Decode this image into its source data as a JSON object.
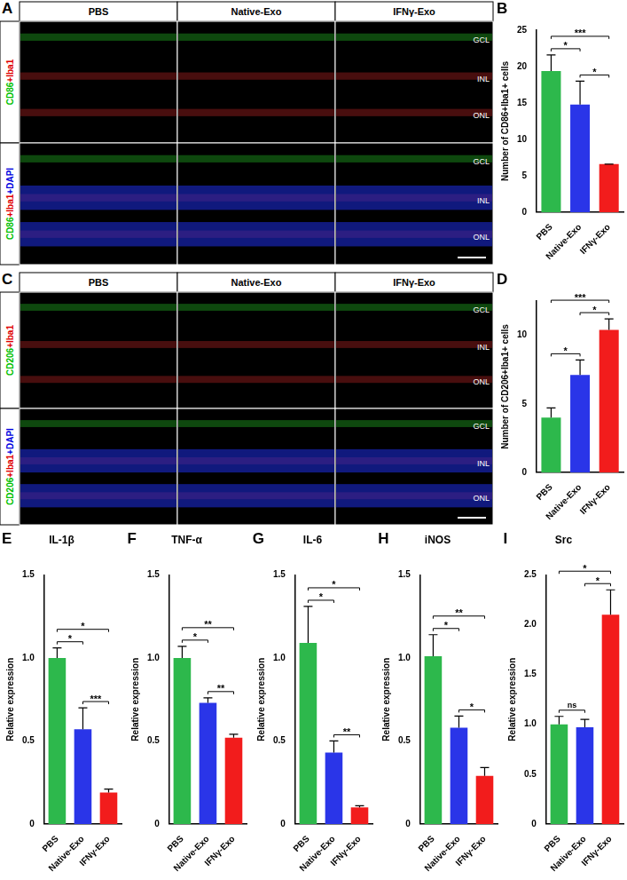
{
  "image_panels": [
    {
      "panel": "A",
      "columns": [
        "PBS",
        "Native-Exo",
        "IFNγ-Exo"
      ],
      "rows": [
        [
          {
            "text": "CD86",
            "color": "#00c000"
          },
          {
            "text": "+Iba1",
            "color": "#e00000"
          }
        ],
        [
          {
            "text": "CD86",
            "color": "#00c000"
          },
          {
            "text": "+Iba1",
            "color": "#e00000"
          },
          {
            "text": "+DAPI",
            "color": "#0000e0"
          }
        ]
      ],
      "layers": [
        "GCL",
        "INL",
        "ONL"
      ]
    },
    {
      "panel": "C",
      "columns": [
        "PBS",
        "Native-Exo",
        "IFNγ-Exo"
      ],
      "rows": [
        [
          {
            "text": "CD206",
            "color": "#00c000"
          },
          {
            "text": "+Iba1",
            "color": "#e00000"
          }
        ],
        [
          {
            "text": "CD206",
            "color": "#00c000"
          },
          {
            "text": "+Iba1",
            "color": "#e00000"
          },
          {
            "text": "+DAPI",
            "color": "#0000e0"
          }
        ]
      ],
      "layers": [
        "GCL",
        "INL",
        "ONL"
      ]
    }
  ],
  "chart_data": [
    {
      "panel": "B",
      "type": "bar",
      "categories": [
        "PBS",
        "Native-Exo",
        "IFNγ-Exo"
      ],
      "values": [
        19.4,
        14.8,
        6.6
      ],
      "errors": [
        2.2,
        3.2,
        0
      ],
      "colors": [
        "#2db84c",
        "#2a35e8",
        "#f21c1c"
      ],
      "y_label": "Number of CD86+Iba1+ cells",
      "ylim": [
        0,
        25
      ],
      "yticks": [
        0,
        5,
        10,
        15,
        20,
        25
      ],
      "grid": false,
      "annotations": [
        {
          "between": [
            "PBS",
            "Native-Exo"
          ],
          "label": "*"
        },
        {
          "between": [
            "Native-Exo",
            "IFNγ-Exo"
          ],
          "label": "*"
        },
        {
          "between": [
            "PBS",
            "IFNγ-Exo"
          ],
          "label": "***"
        }
      ]
    },
    {
      "panel": "D",
      "type": "bar",
      "categories": [
        "PBS",
        "Native-Exo",
        "IFNγ-Exo"
      ],
      "values": [
        4.0,
        7.1,
        10.4
      ],
      "errors": [
        0.7,
        1.1,
        0.8
      ],
      "colors": [
        "#2db84c",
        "#2a35e8",
        "#f21c1c"
      ],
      "y_label": "Number of CD206+Iba1+ cells",
      "ylim": [
        0,
        12.5
      ],
      "yticks": [
        0,
        5,
        10
      ],
      "grid": false,
      "annotations": [
        {
          "between": [
            "PBS",
            "Native-Exo"
          ],
          "label": "*"
        },
        {
          "between": [
            "Native-Exo",
            "IFNγ-Exo"
          ],
          "label": "*"
        },
        {
          "between": [
            "PBS",
            "IFNγ-Exo"
          ],
          "label": "***"
        }
      ]
    },
    {
      "panel": "E",
      "type": "bar",
      "title": "IL-1β",
      "categories": [
        "PBS",
        "Native-Exo",
        "IFNγ-Exo"
      ],
      "values": [
        1.0,
        0.57,
        0.19
      ],
      "errors": [
        0.06,
        0.13,
        0.02
      ],
      "colors": [
        "#2db84c",
        "#2a35e8",
        "#f21c1c"
      ],
      "y_label": "Relative expression",
      "ylim": [
        0,
        1.5
      ],
      "yticks": [
        0,
        0.5,
        {
          "value": 1,
          "label": "1.0"
        },
        1.5
      ],
      "grid": false,
      "annotations": [
        {
          "between": [
            "PBS",
            "Native-Exo"
          ],
          "label": "*"
        },
        {
          "between": [
            "Native-Exo",
            "IFNγ-Exo"
          ],
          "label": "***"
        },
        {
          "between": [
            "PBS",
            "IFNγ-Exo"
          ],
          "label": "*"
        }
      ]
    },
    {
      "panel": "F",
      "type": "bar",
      "title": "TNF-α",
      "categories": [
        "PBS",
        "Native-Exo",
        "IFNγ-Exo"
      ],
      "values": [
        1.0,
        0.73,
        0.52
      ],
      "errors": [
        0.07,
        0.03,
        0.02
      ],
      "colors": [
        "#2db84c",
        "#2a35e8",
        "#f21c1c"
      ],
      "y_label": "Relative expression",
      "ylim": [
        0,
        1.5
      ],
      "yticks": [
        0,
        0.5,
        {
          "value": 1,
          "label": "1.0"
        },
        1.5
      ],
      "grid": false,
      "annotations": [
        {
          "between": [
            "PBS",
            "Native-Exo"
          ],
          "label": "*"
        },
        {
          "between": [
            "Native-Exo",
            "IFNγ-Exo"
          ],
          "label": "**"
        },
        {
          "between": [
            "PBS",
            "IFNγ-Exo"
          ],
          "label": "**"
        }
      ]
    },
    {
      "panel": "G",
      "type": "bar",
      "title": "IL-6",
      "categories": [
        "PBS",
        "Native-Exo",
        "IFNγ-Exo"
      ],
      "values": [
        1.09,
        0.43,
        0.1
      ],
      "errors": [
        0.22,
        0.07,
        0.01
      ],
      "colors": [
        "#2db84c",
        "#2a35e8",
        "#f21c1c"
      ],
      "y_label": "Relative expression",
      "ylim": [
        0,
        1.5
      ],
      "yticks": [
        0,
        0.5,
        {
          "value": 1,
          "label": "1.0"
        },
        1.5
      ],
      "grid": false,
      "annotations": [
        {
          "between": [
            "PBS",
            "Native-Exo"
          ],
          "label": "*"
        },
        {
          "between": [
            "Native-Exo",
            "IFNγ-Exo"
          ],
          "label": "**"
        },
        {
          "between": [
            "PBS",
            "IFNγ-Exo"
          ],
          "label": "*"
        }
      ]
    },
    {
      "panel": "H",
      "type": "bar",
      "title": "iNOS",
      "categories": [
        "PBS",
        "Native-Exo",
        "IFNγ-Exo"
      ],
      "values": [
        1.01,
        0.58,
        0.29
      ],
      "errors": [
        0.13,
        0.07,
        0.05
      ],
      "colors": [
        "#2db84c",
        "#2a35e8",
        "#f21c1c"
      ],
      "y_label": "Relative expression",
      "ylim": [
        0,
        1.5
      ],
      "yticks": [
        0,
        0.5,
        {
          "value": 1,
          "label": "1.0"
        },
        1.5
      ],
      "grid": false,
      "annotations": [
        {
          "between": [
            "PBS",
            "Native-Exo"
          ],
          "label": "*"
        },
        {
          "between": [
            "Native-Exo",
            "IFNγ-Exo"
          ],
          "label": "*"
        },
        {
          "between": [
            "PBS",
            "IFNγ-Exo"
          ],
          "label": "**"
        }
      ]
    },
    {
      "panel": "I",
      "type": "bar",
      "title": "Src",
      "categories": [
        "PBS",
        "Native-Exo",
        "IFNγ-Exo"
      ],
      "values": [
        1.0,
        0.97,
        2.1
      ],
      "errors": [
        0.08,
        0.08,
        0.25
      ],
      "colors": [
        "#2db84c",
        "#2a35e8",
        "#f21c1c"
      ],
      "y_label": "Relative expression",
      "ylim": [
        0,
        2.5
      ],
      "yticks": [
        0,
        0.5,
        {
          "value": 1,
          "label": "1.0"
        },
        1.5,
        {
          "value": 2,
          "label": "2.0"
        },
        2.5
      ],
      "grid": false,
      "annotations": [
        {
          "between": [
            "PBS",
            "Native-Exo"
          ],
          "label": "ns"
        },
        {
          "between": [
            "Native-Exo",
            "IFNγ-Exo"
          ],
          "label": "*"
        },
        {
          "between": [
            "PBS",
            "IFNγ-Exo"
          ],
          "label": "*"
        }
      ]
    }
  ]
}
